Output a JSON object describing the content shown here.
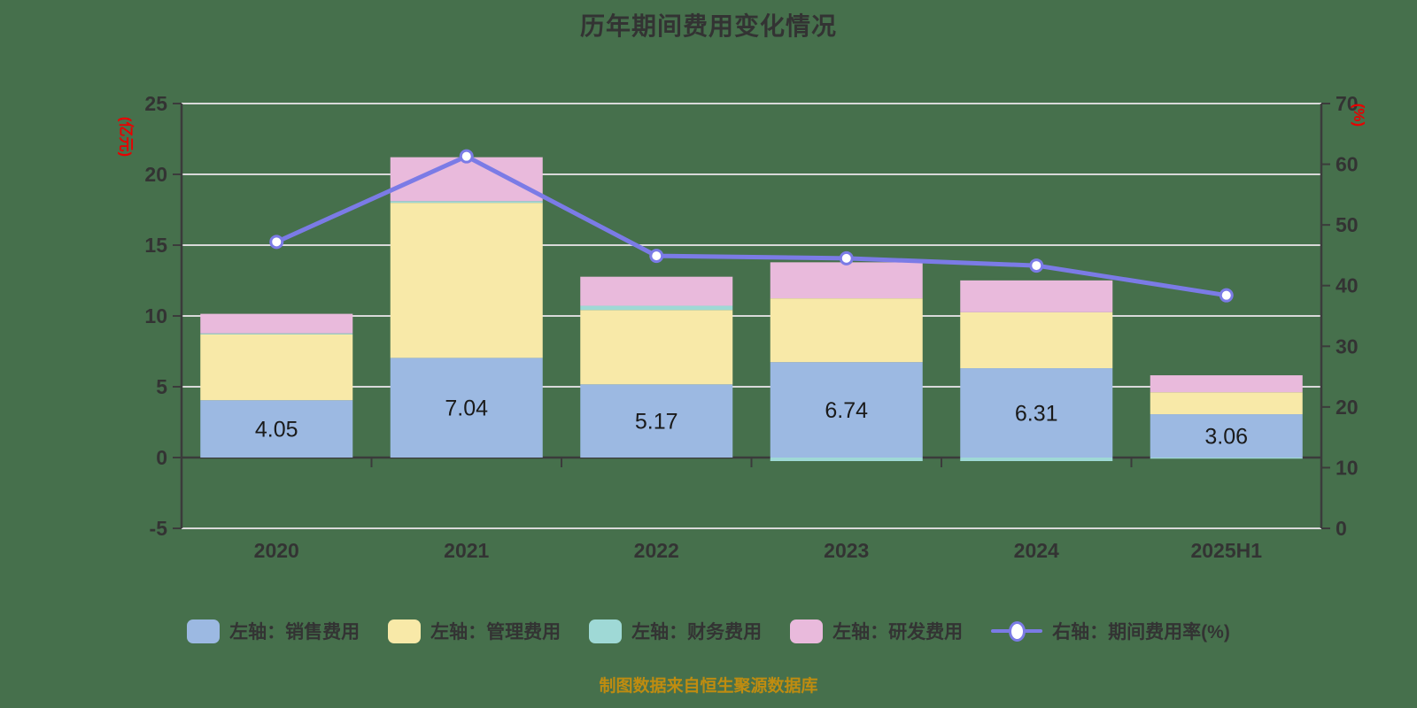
{
  "title": "历年期间费用变化情况",
  "caption": "制图数据来自恒生聚源数据库",
  "left_axis": {
    "unit": "(亿元)",
    "tick_labels": [
      "25",
      "20",
      "15",
      "10",
      "5",
      "0",
      "-5"
    ]
  },
  "right_axis": {
    "unit": "(%)",
    "tick_labels": [
      "70",
      "60",
      "50",
      "40",
      "30",
      "20",
      "10",
      "0"
    ]
  },
  "legend": {
    "items": [
      {
        "label": "左轴：销售费用",
        "color": "#9CB9E2",
        "type": "swatch"
      },
      {
        "label": "左轴：管理费用",
        "color": "#F8E9A8",
        "type": "swatch"
      },
      {
        "label": "左轴：财务费用",
        "color": "#9FD9D6",
        "type": "swatch"
      },
      {
        "label": "左轴：研发费用",
        "color": "#E9BADC",
        "type": "swatch"
      },
      {
        "label": "右轴：期间费用率(%)",
        "color": "#7B7BE6",
        "type": "line-marker"
      }
    ]
  },
  "chart_data": {
    "type": "bar",
    "subtype": "stacked-bars-with-right-axis-line",
    "categories": [
      "2020",
      "2021",
      "2022",
      "2023",
      "2024",
      "2025H1"
    ],
    "series": [
      {
        "name": "左轴：销售费用",
        "type": "bar",
        "axis": "left",
        "color": "#9CB9E2",
        "values": [
          4.05,
          7.04,
          5.17,
          6.74,
          6.31,
          3.06
        ],
        "data_labels": [
          "4.05",
          "7.04",
          "5.17",
          "6.74",
          "6.31",
          "3.06"
        ]
      },
      {
        "name": "左轴：管理费用",
        "type": "bar",
        "axis": "left",
        "color": "#F8E9A8",
        "values": [
          4.65,
          10.95,
          5.25,
          4.5,
          3.95,
          1.55
        ]
      },
      {
        "name": "左轴：财务费用",
        "type": "bar",
        "axis": "left",
        "color": "#9FD9D6",
        "values": [
          0.07,
          0.12,
          0.3,
          -0.25,
          -0.25,
          -0.08
        ]
      },
      {
        "name": "左轴：研发费用",
        "type": "bar",
        "axis": "left",
        "color": "#E9BADC",
        "values": [
          1.38,
          3.1,
          2.05,
          2.55,
          2.25,
          1.2
        ]
      },
      {
        "name": "右轴：期间费用率(%)",
        "type": "line",
        "axis": "right",
        "color": "#7B7BE6",
        "values": [
          47.2,
          61.3,
          44.9,
          44.5,
          43.3,
          38.4
        ]
      }
    ],
    "left_ylim": [
      -5,
      25
    ],
    "right_ylim": [
      0,
      70
    ],
    "left_tick_step": 5,
    "right_tick_step": 10,
    "grid": true,
    "legend_position": "bottom"
  },
  "colors": {
    "background": "#46704C",
    "grid_line": "#D9D9D9",
    "axis_line": "#3B3B3B",
    "text": "#333333",
    "bar_label": "#1A1A1A",
    "axis_unit": "#E80000",
    "caption": "#BF8C10",
    "line_marker_fill": "#FFFFFF"
  }
}
